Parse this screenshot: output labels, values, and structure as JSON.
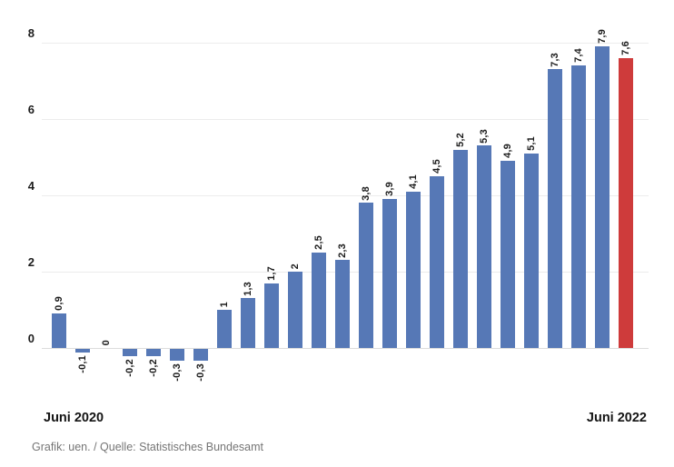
{
  "chart_data": {
    "type": "bar",
    "title": "",
    "y_axis": {
      "tick_values": [
        0,
        2,
        4,
        6,
        8
      ],
      "tick_labels": [
        "0",
        "2",
        "4",
        "6",
        "8"
      ],
      "ylim": [
        -0.6,
        8.4
      ],
      "grid": true
    },
    "x_axis": {
      "start_label": "Juni 2020",
      "end_label": "Juni 2022"
    },
    "bars": [
      {
        "value": 0.9,
        "label": "0,9"
      },
      {
        "value": -0.1,
        "label": "-0,1"
      },
      {
        "value": 0,
        "label": "0"
      },
      {
        "value": -0.2,
        "label": "-0,2"
      },
      {
        "value": -0.2,
        "label": "-0,2"
      },
      {
        "value": -0.3,
        "label": "-0,3"
      },
      {
        "value": -0.3,
        "label": "-0,3"
      },
      {
        "value": 1,
        "label": "1"
      },
      {
        "value": 1.3,
        "label": "1,3"
      },
      {
        "value": 1.7,
        "label": "1,7"
      },
      {
        "value": 2,
        "label": "2"
      },
      {
        "value": 2.5,
        "label": "2,5"
      },
      {
        "value": 2.3,
        "label": "2,3"
      },
      {
        "value": 3.8,
        "label": "3,8"
      },
      {
        "value": 3.9,
        "label": "3,9"
      },
      {
        "value": 4.1,
        "label": "4,1"
      },
      {
        "value": 4.5,
        "label": "4,5"
      },
      {
        "value": 5.2,
        "label": "5,2"
      },
      {
        "value": 5.3,
        "label": "5,3"
      },
      {
        "value": 4.9,
        "label": "4,9"
      },
      {
        "value": 5.1,
        "label": "5,1"
      },
      {
        "value": 7.3,
        "label": "7,3"
      },
      {
        "value": 7.4,
        "label": "7,4"
      },
      {
        "value": 7.9,
        "label": "7,9"
      },
      {
        "value": 7.6,
        "label": "7,6"
      }
    ],
    "highlight_index": 24,
    "legend": null,
    "colors": {
      "bar": "#5678b6",
      "highlight_bar": "#ce3b3b",
      "gridline": "#ececec",
      "zero_line": "#dcdcdc",
      "value_label_text": "#1c1c1c",
      "axis_text": "#1c1c1c",
      "x_label_text": "#141414",
      "footer_text": "#757575"
    }
  },
  "footer": {
    "credit": "Grafik: uen. / Quelle: Statistisches Bundesamt"
  }
}
